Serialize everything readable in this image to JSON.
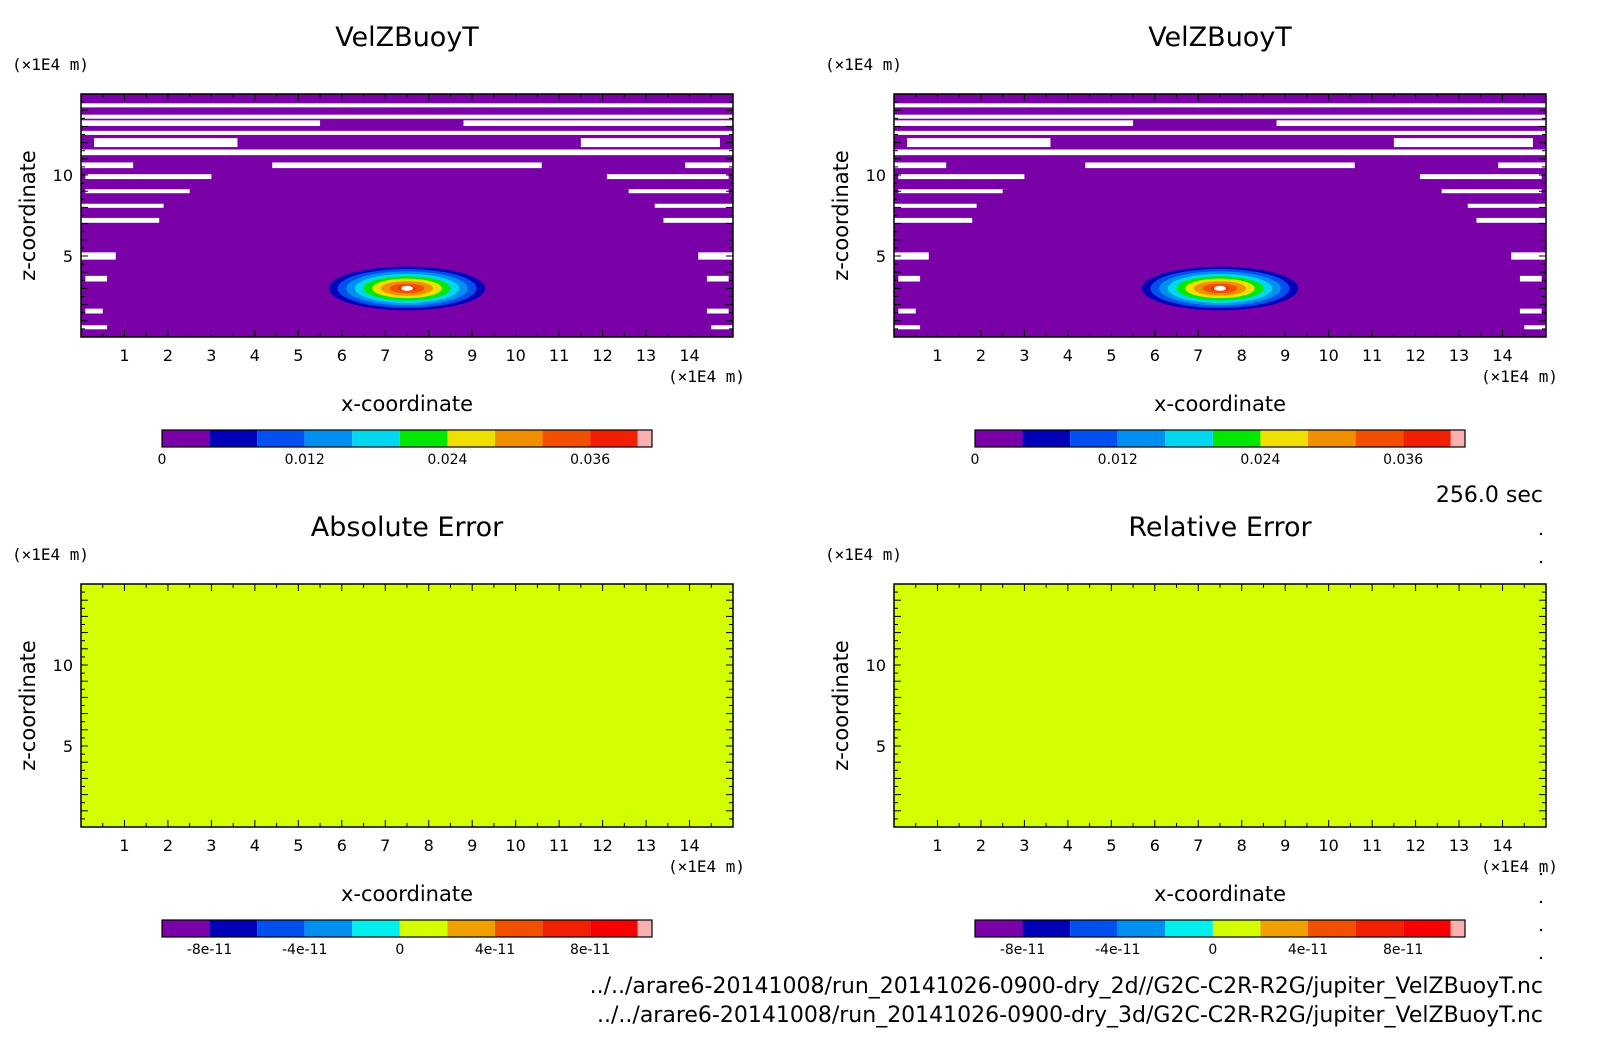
{
  "time_label": "256.0 sec",
  "files": [
    "../../arare6-20141008/run_20141026-0900-dry_2d//G2C-C2R-R2G/jupiter_VelZBuoyT.nc",
    "../../arare6-20141008/run_20141026-0900-dry_3d/G2C-C2R-R2G/jupiter_VelZBuoyT.nc"
  ],
  "chart_data": [
    {
      "type": "heatmap",
      "title": "VelZBuoyT",
      "xlabel": "x-coordinate",
      "ylabel": "z-coordinate",
      "x_unit": "(×1E4 m)",
      "y_unit": "(×1E4 m)",
      "xlim": [
        0,
        15
      ],
      "ylim": [
        0,
        15
      ],
      "xticks": [
        "1",
        "2",
        "3",
        "4",
        "5",
        "6",
        "7",
        "8",
        "9",
        "10",
        "11",
        "12",
        "13",
        "14"
      ],
      "yticks": [
        "5",
        "10"
      ],
      "field": "bubble",
      "bubble_center": [
        7.5,
        3
      ],
      "colorbar": {
        "colors": [
          "#7a00a8",
          "#0000b8",
          "#0050f0",
          "#0090f0",
          "#00d8f0",
          "#00e800",
          "#f0e000",
          "#f09000",
          "#f05000",
          "#f02000",
          "#f8b0b0"
        ],
        "labels": [
          "0",
          "0.012",
          "0.024",
          "0.036"
        ]
      }
    },
    {
      "type": "heatmap",
      "title": "VelZBuoyT",
      "xlabel": "x-coordinate",
      "ylabel": "z-coordinate",
      "x_unit": "(×1E4 m)",
      "y_unit": "(×1E4 m)",
      "xlim": [
        0,
        15
      ],
      "ylim": [
        0,
        15
      ],
      "xticks": [
        "1",
        "2",
        "3",
        "4",
        "5",
        "6",
        "7",
        "8",
        "9",
        "10",
        "11",
        "12",
        "13",
        "14"
      ],
      "yticks": [
        "5",
        "10"
      ],
      "field": "bubble",
      "bubble_center": [
        7.5,
        3
      ],
      "colorbar": {
        "colors": [
          "#7a00a8",
          "#0000b8",
          "#0050f0",
          "#0090f0",
          "#00d8f0",
          "#00e800",
          "#f0e000",
          "#f09000",
          "#f05000",
          "#f02000",
          "#f8b0b0"
        ],
        "labels": [
          "0",
          "0.012",
          "0.024",
          "0.036"
        ]
      }
    },
    {
      "type": "heatmap",
      "title": "Absolute Error",
      "xlabel": "x-coordinate",
      "ylabel": "z-coordinate",
      "x_unit": "(×1E4 m)",
      "y_unit": "(×1E4 m)",
      "xlim": [
        0,
        15
      ],
      "ylim": [
        0,
        15
      ],
      "xticks": [
        "1",
        "2",
        "3",
        "4",
        "5",
        "6",
        "7",
        "8",
        "9",
        "10",
        "11",
        "12",
        "13",
        "14"
      ],
      "yticks": [
        "5",
        "10"
      ],
      "field": "uniform",
      "uniform_value": 0,
      "fill_color": "#d4ff00",
      "colorbar": {
        "colors": [
          "#7a00a8",
          "#0000b8",
          "#0050f0",
          "#0090f0",
          "#00f0f0",
          "#d4ff00",
          "#f0a000",
          "#f05000",
          "#f02000",
          "#f80000",
          "#f8b0b0"
        ],
        "labels": [
          "-8e-11",
          "-4e-11",
          "0",
          "4e-11",
          "8e-11"
        ]
      }
    },
    {
      "type": "heatmap",
      "title": "Relative Error",
      "xlabel": "x-coordinate",
      "ylabel": "z-coordinate",
      "x_unit": "(×1E4 m)",
      "y_unit": "(×1E4 m)",
      "xlim": [
        0,
        15
      ],
      "ylim": [
        0,
        15
      ],
      "xticks": [
        "1",
        "2",
        "3",
        "4",
        "5",
        "6",
        "7",
        "8",
        "9",
        "10",
        "11",
        "12",
        "13",
        "14"
      ],
      "yticks": [
        "5",
        "10"
      ],
      "field": "uniform",
      "uniform_value": 0,
      "fill_color": "#d4ff00",
      "colorbar": {
        "colors": [
          "#7a00a8",
          "#0000b8",
          "#0050f0",
          "#0090f0",
          "#00f0f0",
          "#d4ff00",
          "#f0a000",
          "#f05000",
          "#f02000",
          "#f80000",
          "#f8b0b0"
        ],
        "labels": [
          "-8e-11",
          "-4e-11",
          "0",
          "4e-11",
          "8e-11"
        ]
      }
    }
  ]
}
